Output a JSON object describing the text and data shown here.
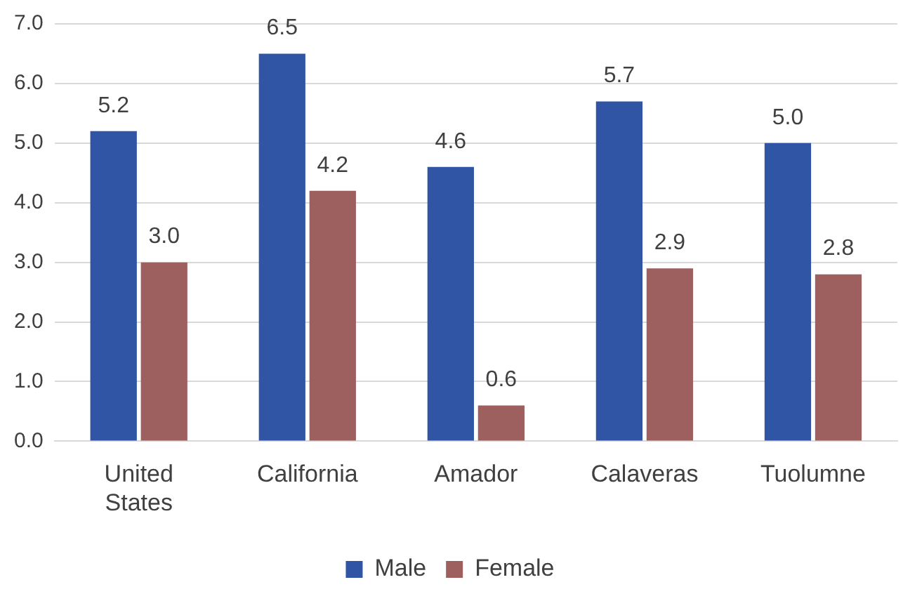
{
  "chart_data": {
    "type": "bar",
    "categories": [
      "United States",
      "California",
      "Amador",
      "Calaveras",
      "Tuolumne"
    ],
    "series": [
      {
        "name": "Male",
        "color": "#2f55a4",
        "values": [
          5.2,
          6.5,
          4.6,
          5.7,
          5.0
        ],
        "value_labels": [
          "5.2",
          "6.5",
          "4.6",
          "5.7",
          "5.0"
        ]
      },
      {
        "name": "Female",
        "color": "#9e5f5f",
        "values": [
          3.0,
          4.2,
          0.6,
          2.9,
          2.8
        ],
        "value_labels": [
          "3.0",
          "4.2",
          "0.6",
          "2.9",
          "2.8"
        ]
      }
    ],
    "ylim": [
      0,
      7
    ],
    "yticks": [
      {
        "value": 0,
        "label": "0.0"
      },
      {
        "value": 1,
        "label": "1.0"
      },
      {
        "value": 2,
        "label": "2.0"
      },
      {
        "value": 3,
        "label": "3.0"
      },
      {
        "value": 4,
        "label": "4.0"
      },
      {
        "value": 5,
        "label": "5.0"
      },
      {
        "value": 6,
        "label": "6.0"
      },
      {
        "value": 7,
        "label": "7.0"
      }
    ],
    "grid": "y",
    "legend": "bottom"
  }
}
